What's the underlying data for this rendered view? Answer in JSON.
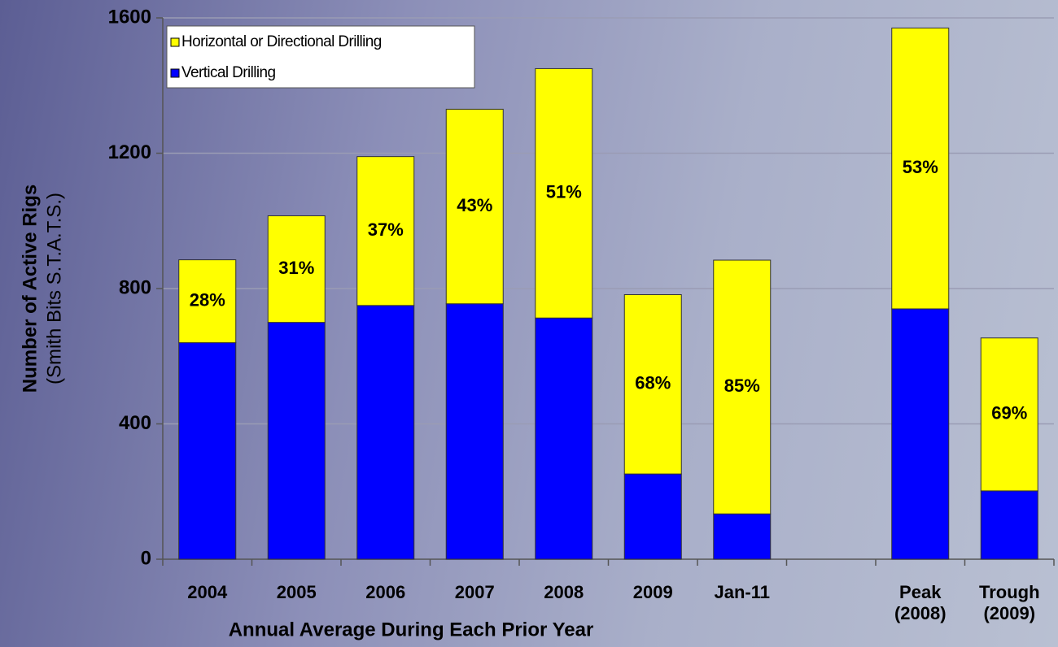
{
  "chart_data": {
    "type": "stacked_bar",
    "y_label": "Number of Active Rigs",
    "y_label_sub": "(Smith Bits S.T.A.T.S.)",
    "x_label": "Annual Average During Each Prior Year",
    "categories": [
      "2004",
      "2005",
      "2006",
      "2007",
      "2008",
      "2009",
      "Jan-11",
      null,
      "Peak (2008)",
      "Trough (2009)"
    ],
    "series": [
      {
        "name": "Vertical Drilling",
        "color": "#0000ff",
        "values": [
          640,
          700,
          750,
          755,
          713,
          252,
          134,
          null,
          740,
          202
        ]
      },
      {
        "name": "Horizontal or Directional Drilling",
        "color": "#ffff00",
        "values": [
          245,
          315,
          440,
          575,
          737,
          530,
          750,
          null,
          830,
          452
        ]
      }
    ],
    "annotations": [
      "28%",
      "31%",
      "37%",
      "43%",
      "51%",
      "68%",
      "85%",
      null,
      "53%",
      "69%"
    ],
    "ylim": [
      0,
      1600
    ],
    "yticks": [
      0,
      400,
      800,
      1200,
      1600
    ],
    "grid": true
  }
}
